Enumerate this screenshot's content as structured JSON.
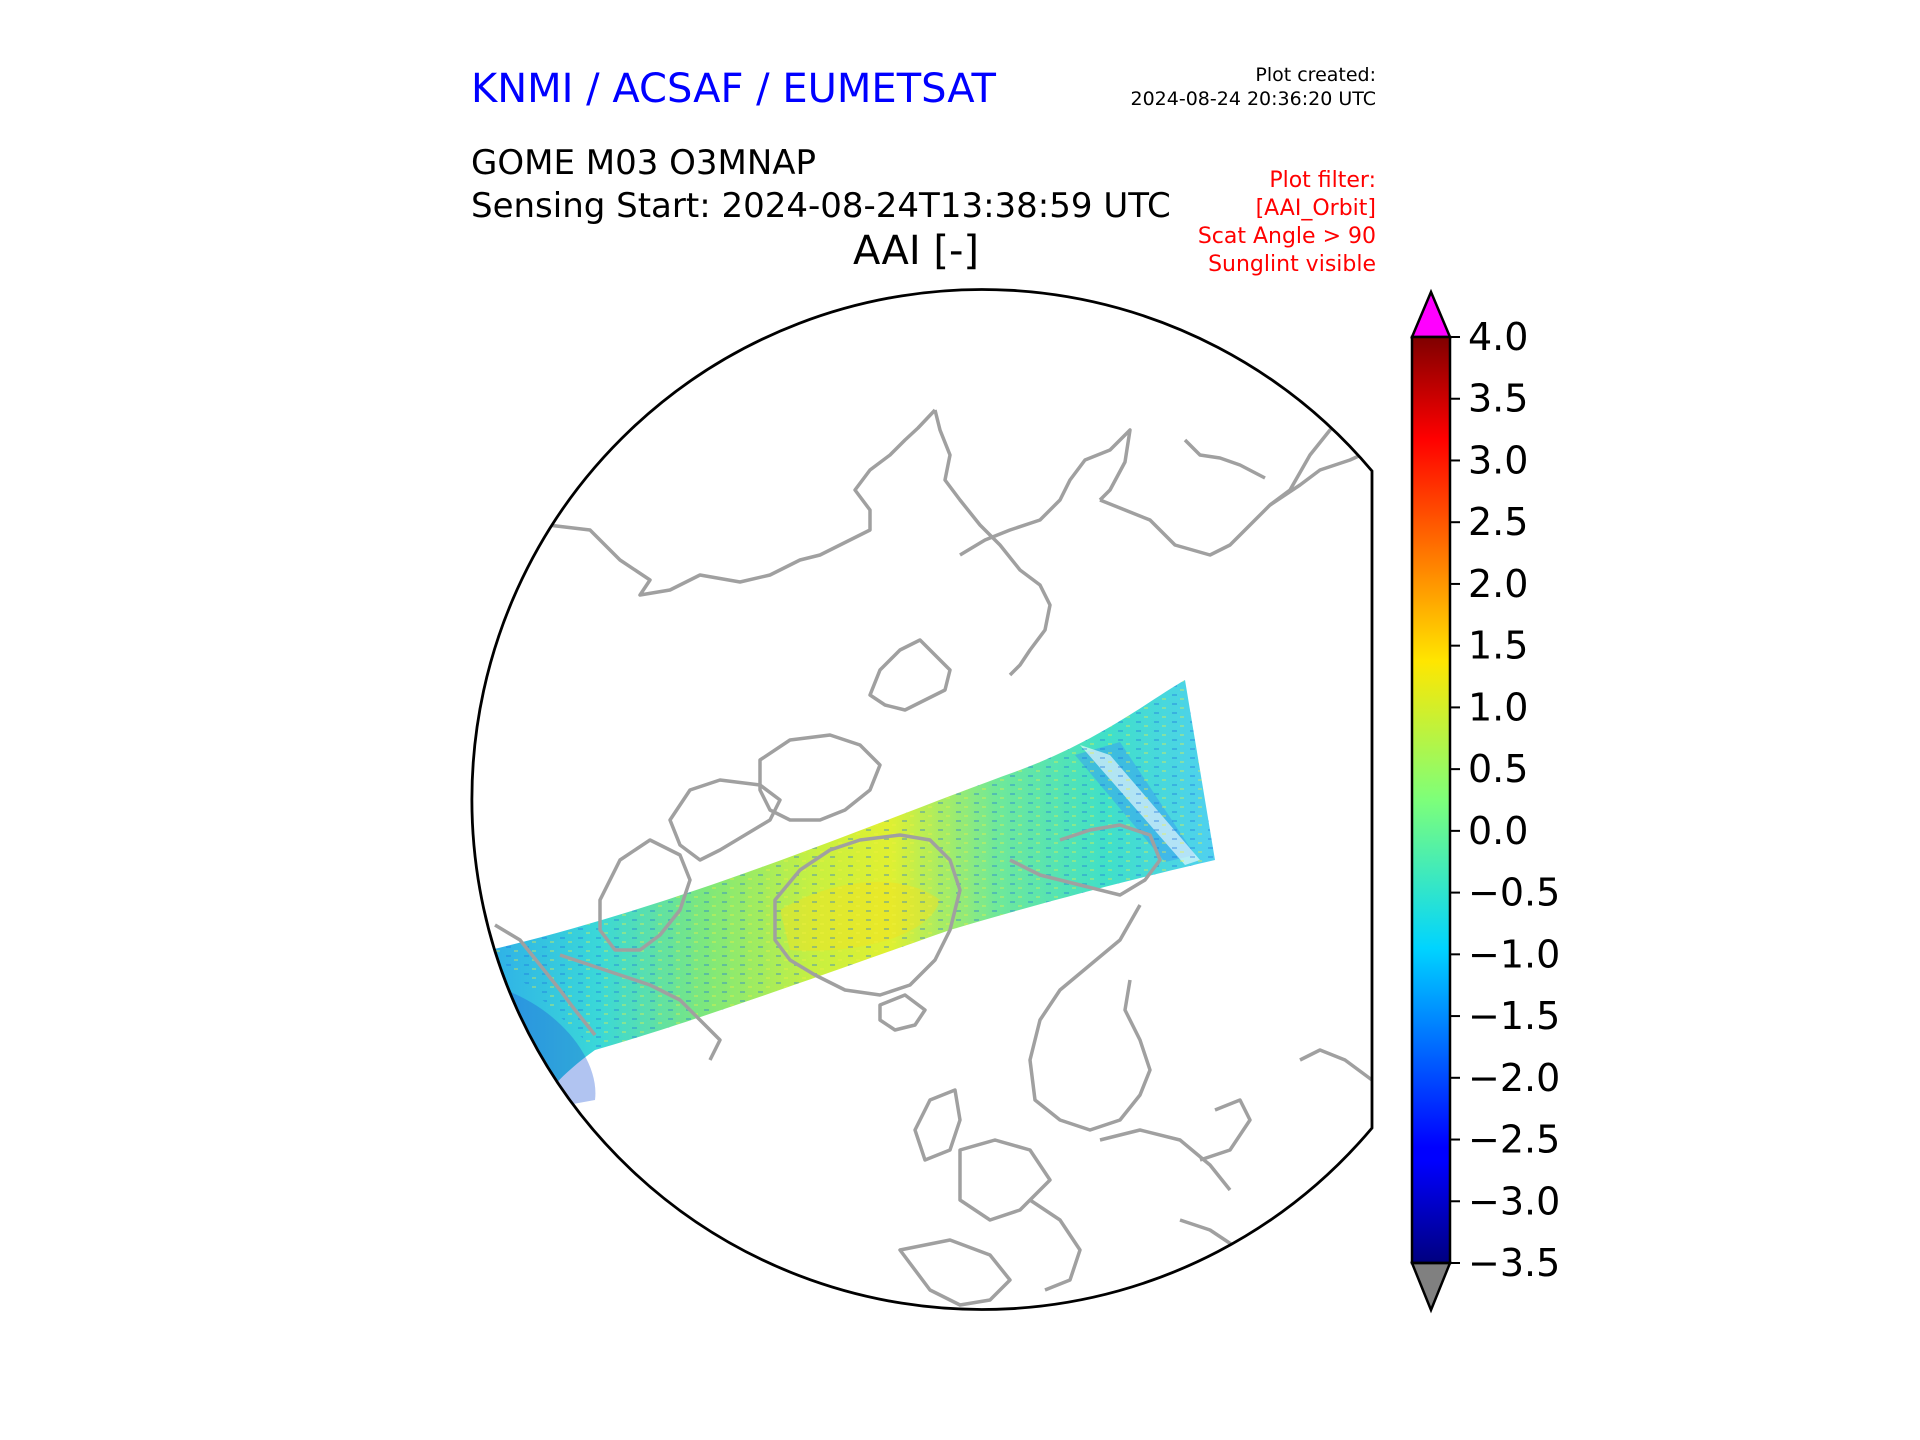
{
  "header": {
    "organisation": "KNMI / ACSAF / EUMETSAT",
    "created_label": "Plot created:",
    "created_value": "2024-08-24 20:36:20 UTC",
    "product": "GOME M03 O3MNAP",
    "sensing_start": "Sensing Start: 2024-08-24T13:38:59 UTC",
    "map_title": "AAI [-]"
  },
  "filter": [
    "Plot filter:",
    "[AAI_Orbit]",
    "Scat Angle > 90",
    "Sunglint visible"
  ],
  "map": {
    "projection": "polar-stereographic-north",
    "coastline_color": "#a0a0a0",
    "frame_color": "#000000"
  },
  "colorbar": {
    "variable": "AAI",
    "min": -3.5,
    "max": 4.0,
    "ticks": [
      "4.0",
      "3.5",
      "3.0",
      "2.5",
      "2.0",
      "1.5",
      "1.0",
      "0.5",
      "0.0",
      "−0.5",
      "−1.0",
      "−1.5",
      "−2.0",
      "−2.5",
      "−3.0",
      "−3.5"
    ],
    "over_color": "#ff00ff",
    "under_color": "#808080",
    "colormap": "jet"
  }
}
